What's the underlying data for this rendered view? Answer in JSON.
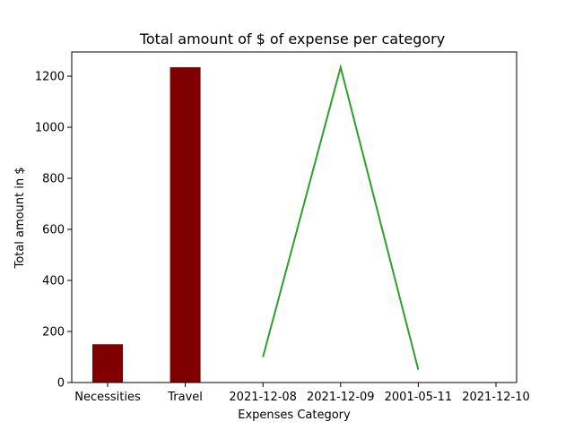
{
  "chart_data": {
    "type": "bar",
    "title": "Total amount of $ of expense per category",
    "xlabel": "Expenses Category",
    "ylabel": "Total amount in $",
    "categories": [
      "Necessities",
      "Travel",
      "2021-12-08",
      "2021-12-09",
      "2001-05-11",
      "2021-12-10"
    ],
    "ylim": [
      0,
      1295
    ],
    "yticks": [
      0,
      200,
      400,
      600,
      800,
      1000,
      1200
    ],
    "grid": false,
    "bars": {
      "color": "#800000",
      "values": [
        150,
        1235,
        null,
        null,
        null,
        null
      ]
    },
    "line": {
      "color": "#2ca02c",
      "values": [
        null,
        null,
        100,
        1235,
        50,
        null
      ]
    }
  }
}
